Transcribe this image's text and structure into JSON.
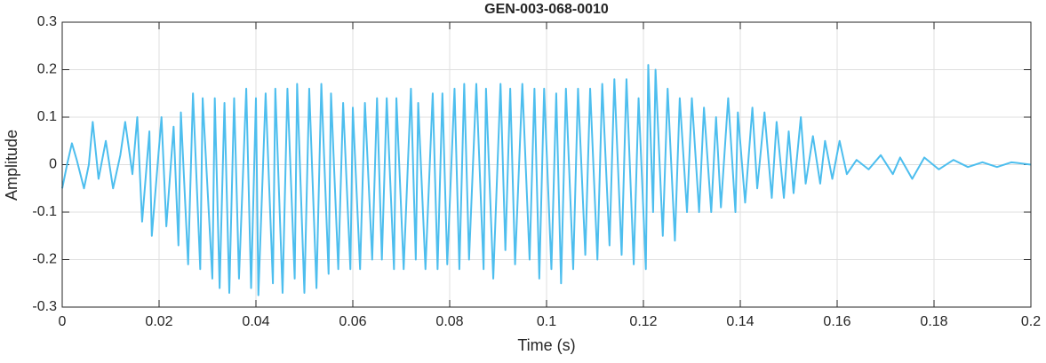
{
  "chart_data": {
    "type": "line",
    "title": "GEN-003-068-0010",
    "x_label": "Time (s)",
    "y_label": "Amplitude",
    "x": [
      0,
      0.001,
      0.002,
      0.003,
      0.0045,
      0.0055,
      0.0063,
      0.0075,
      0.009,
      0.0105,
      0.012,
      0.013,
      0.0145,
      0.0155,
      0.0165,
      0.018,
      0.0185,
      0.0205,
      0.0215,
      0.023,
      0.024,
      0.0245,
      0.026,
      0.027,
      0.0285,
      0.029,
      0.031,
      0.0315,
      0.0325,
      0.0335,
      0.0345,
      0.0355,
      0.0365,
      0.038,
      0.039,
      0.04,
      0.0405,
      0.042,
      0.0435,
      0.044,
      0.0455,
      0.0465,
      0.048,
      0.0485,
      0.05,
      0.051,
      0.0525,
      0.0535,
      0.055,
      0.0555,
      0.057,
      0.058,
      0.0595,
      0.06,
      0.0615,
      0.0625,
      0.064,
      0.065,
      0.066,
      0.067,
      0.0685,
      0.069,
      0.0705,
      0.072,
      0.073,
      0.0735,
      0.075,
      0.0765,
      0.0775,
      0.0785,
      0.0795,
      0.081,
      0.082,
      0.083,
      0.084,
      0.0855,
      0.087,
      0.0875,
      0.089,
      0.0905,
      0.0915,
      0.0925,
      0.0935,
      0.095,
      0.0965,
      0.0975,
      0.0985,
      0.0995,
      0.101,
      0.102,
      0.103,
      0.104,
      0.1055,
      0.1065,
      0.108,
      0.109,
      0.1105,
      0.1115,
      0.113,
      0.114,
      0.1155,
      0.1165,
      0.118,
      0.119,
      0.1205,
      0.121,
      0.122,
      0.1225,
      0.124,
      0.125,
      0.1265,
      0.1275,
      0.129,
      0.13,
      0.1315,
      0.1325,
      0.134,
      0.135,
      0.136,
      0.1375,
      0.139,
      0.1395,
      0.141,
      0.1425,
      0.1435,
      0.145,
      0.1465,
      0.1475,
      0.149,
      0.15,
      0.151,
      0.1525,
      0.1535,
      0.155,
      0.1565,
      0.1575,
      0.159,
      0.1605,
      0.162,
      0.164,
      0.1665,
      0.169,
      0.1715,
      0.173,
      0.1755,
      0.178,
      0.181,
      0.184,
      0.187,
      0.19,
      0.193,
      0.196,
      0.2
    ],
    "series": [
      {
        "color": "#4dbeee",
        "values": [
          -0.05,
          0,
          0.045,
          0.01,
          -0.05,
          0,
          0.09,
          -0.03,
          0.05,
          -0.05,
          0.02,
          0.09,
          -0.02,
          0.1,
          -0.12,
          0.07,
          -0.15,
          0.1,
          -0.13,
          0.08,
          -0.17,
          0.11,
          -0.21,
          0.15,
          -0.22,
          0.14,
          -0.24,
          0.14,
          -0.26,
          0.13,
          -0.27,
          0.14,
          -0.24,
          0.16,
          -0.26,
          0.14,
          -0.275,
          0.15,
          -0.25,
          0.16,
          -0.27,
          0.16,
          -0.24,
          0.17,
          -0.27,
          0.16,
          -0.26,
          0.17,
          -0.23,
          0.15,
          -0.22,
          0.13,
          -0.22,
          0.12,
          -0.22,
          0.13,
          -0.2,
          0.14,
          -0.2,
          0.14,
          -0.22,
          0.14,
          -0.22,
          0.16,
          -0.2,
          0.13,
          -0.22,
          0.15,
          -0.22,
          0.15,
          -0.21,
          0.16,
          -0.22,
          0.17,
          -0.2,
          0.17,
          -0.22,
          0.16,
          -0.24,
          0.17,
          -0.18,
          0.16,
          -0.21,
          0.17,
          -0.2,
          0.16,
          -0.24,
          0.16,
          -0.22,
          0.15,
          -0.25,
          0.16,
          -0.22,
          0.16,
          -0.19,
          0.16,
          -0.2,
          0.17,
          -0.17,
          0.18,
          -0.19,
          0.18,
          -0.21,
          0.14,
          -0.22,
          0.21,
          -0.1,
          0.2,
          -0.15,
          0.16,
          -0.16,
          0.14,
          -0.1,
          0.14,
          -0.1,
          0.12,
          -0.1,
          0.1,
          -0.09,
          0.14,
          -0.1,
          0.11,
          -0.08,
          0.12,
          -0.05,
          0.11,
          -0.07,
          0.09,
          -0.07,
          0.07,
          -0.06,
          0.1,
          -0.04,
          0.06,
          -0.04,
          0.05,
          -0.03,
          0.05,
          -0.02,
          0.01,
          -0.01,
          0.02,
          -0.02,
          0.015,
          -0.03,
          0.015,
          -0.01,
          0.01,
          -0.005,
          0.005,
          -0.005,
          0.005,
          0
        ]
      }
    ],
    "xlim": [
      0,
      0.2
    ],
    "xticks": [
      0,
      0.02,
      0.04,
      0.06,
      0.08,
      0.1,
      0.12,
      0.14,
      0.16,
      0.18,
      0.2
    ],
    "ylim": [
      -0.3,
      0.3
    ],
    "yticks": [
      -0.3,
      -0.2,
      -0.1,
      0,
      0.1,
      0.2,
      0.3
    ],
    "grid": true
  }
}
